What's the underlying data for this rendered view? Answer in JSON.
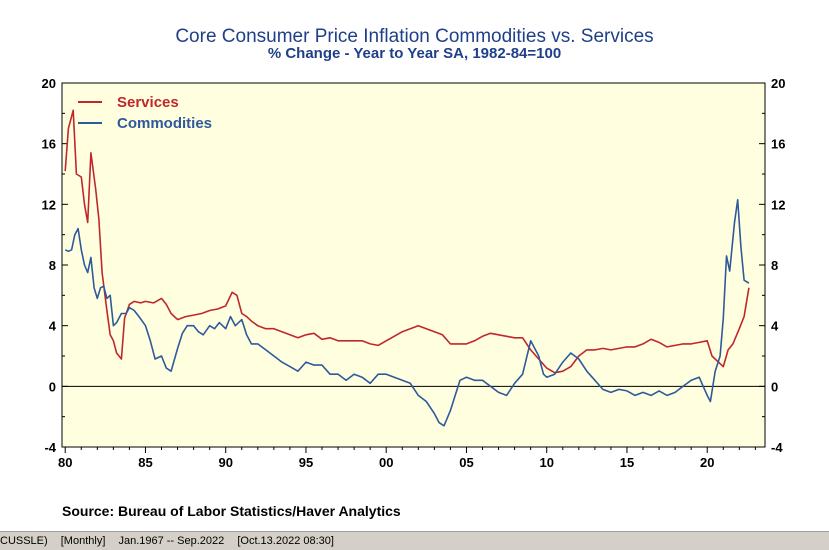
{
  "status_bar": {
    "series_code": "CUSSLE)",
    "frequency": "[Monthly]",
    "date_range": "Jan.1967 -- Sep.2022",
    "timestamp": "[Oct.13.2022 08:30]"
  },
  "chart_data": {
    "type": "line",
    "title": "Core Consumer Price Inflation Commodities vs. Services",
    "subtitle": "% Change - Year to Year    SA, 1982-84=100",
    "source": "Source:  Bureau of Labor Statistics/Haver Analytics",
    "xlim": [
      1979.8,
      2023.6
    ],
    "ylim": [
      -4,
      20
    ],
    "x_ticks": [
      1980,
      1985,
      1990,
      1995,
      2000,
      2005,
      2010,
      2015,
      2020
    ],
    "x_tick_labels": [
      "80",
      "85",
      "90",
      "95",
      "00",
      "05",
      "10",
      "15",
      "20"
    ],
    "y_ticks": [
      -4,
      0,
      4,
      8,
      12,
      16,
      20
    ],
    "y_tick_labels": [
      "-4",
      "0",
      "4",
      "8",
      "12",
      "16",
      "20"
    ],
    "legend_position": "top-left",
    "grid": false,
    "zero_line": true,
    "background_color": "#ffffe0",
    "series": [
      {
        "name": "Services",
        "color": "#c0272d",
        "x": [
          1980.0,
          1980.2,
          1980.5,
          1980.7,
          1981.0,
          1981.2,
          1981.4,
          1981.6,
          1981.9,
          1982.1,
          1982.3,
          1982.6,
          1982.8,
          1983.0,
          1983.2,
          1983.5,
          1983.7,
          1984.0,
          1984.3,
          1984.7,
          1985.0,
          1985.5,
          1986.0,
          1986.3,
          1986.6,
          1987.0,
          1987.5,
          1988.0,
          1988.5,
          1989.0,
          1989.5,
          1990.0,
          1990.4,
          1990.7,
          1991.0,
          1991.3,
          1991.6,
          1992.0,
          1992.5,
          1993.0,
          1993.5,
          1994.0,
          1994.5,
          1995.0,
          1995.5,
          1996.0,
          1996.5,
          1997.0,
          1997.5,
          1998.0,
          1998.5,
          1999.0,
          1999.5,
          2000.0,
          2000.5,
          2001.0,
          2001.5,
          2002.0,
          2002.5,
          2003.0,
          2003.5,
          2004.0,
          2004.5,
          2005.0,
          2005.5,
          2006.0,
          2006.5,
          2007.0,
          2007.5,
          2008.0,
          2008.5,
          2009.0,
          2009.5,
          2010.0,
          2010.5,
          2011.0,
          2011.5,
          2012.0,
          2012.5,
          2013.0,
          2013.5,
          2014.0,
          2014.5,
          2015.0,
          2015.5,
          2016.0,
          2016.5,
          2017.0,
          2017.5,
          2018.0,
          2018.5,
          2019.0,
          2019.5,
          2020.0,
          2020.3,
          2020.6,
          2021.0,
          2021.3,
          2021.6,
          2022.0,
          2022.3,
          2022.6
        ],
        "values": [
          14.2,
          17.0,
          18.2,
          14.0,
          13.8,
          12.0,
          10.8,
          15.4,
          13.0,
          11.0,
          7.5,
          5.0,
          3.4,
          3.0,
          2.2,
          1.8,
          4.5,
          5.4,
          5.6,
          5.5,
          5.6,
          5.5,
          5.8,
          5.4,
          4.8,
          4.4,
          4.6,
          4.7,
          4.8,
          5.0,
          5.1,
          5.3,
          6.2,
          6.0,
          4.8,
          4.6,
          4.3,
          4.0,
          3.8,
          3.8,
          3.6,
          3.4,
          3.2,
          3.4,
          3.5,
          3.1,
          3.2,
          3.0,
          3.0,
          3.0,
          3.0,
          2.8,
          2.7,
          3.0,
          3.3,
          3.6,
          3.8,
          4.0,
          3.8,
          3.6,
          3.4,
          2.8,
          2.8,
          2.8,
          3.0,
          3.3,
          3.5,
          3.4,
          3.3,
          3.2,
          3.2,
          2.4,
          1.8,
          1.2,
          0.9,
          1.0,
          1.3,
          2.0,
          2.4,
          2.4,
          2.5,
          2.4,
          2.5,
          2.6,
          2.6,
          2.8,
          3.1,
          2.9,
          2.6,
          2.7,
          2.8,
          2.8,
          2.9,
          3.0,
          2.0,
          1.7,
          1.3,
          2.4,
          2.8,
          3.8,
          4.6,
          6.5
        ]
      },
      {
        "name": "Commodities",
        "color": "#2e5a9c",
        "x": [
          1980.0,
          1980.2,
          1980.4,
          1980.6,
          1980.8,
          1981.0,
          1981.2,
          1981.4,
          1981.6,
          1981.8,
          1982.0,
          1982.2,
          1982.4,
          1982.6,
          1982.8,
          1983.0,
          1983.2,
          1983.5,
          1983.8,
          1984.0,
          1984.3,
          1984.6,
          1985.0,
          1985.3,
          1985.6,
          1986.0,
          1986.3,
          1986.6,
          1987.0,
          1987.3,
          1987.6,
          1988.0,
          1988.3,
          1988.6,
          1989.0,
          1989.3,
          1989.6,
          1990.0,
          1990.3,
          1990.6,
          1991.0,
          1991.3,
          1991.6,
          1992.0,
          1992.5,
          1993.0,
          1993.5,
          1994.0,
          1994.5,
          1995.0,
          1995.5,
          1996.0,
          1996.5,
          1997.0,
          1997.5,
          1998.0,
          1998.5,
          1999.0,
          1999.5,
          2000.0,
          2000.5,
          2001.0,
          2001.5,
          2002.0,
          2002.5,
          2003.0,
          2003.3,
          2003.6,
          2004.0,
          2004.3,
          2004.6,
          2005.0,
          2005.5,
          2006.0,
          2006.5,
          2007.0,
          2007.5,
          2008.0,
          2008.5,
          2009.0,
          2009.5,
          2009.8,
          2010.0,
          2010.5,
          2011.0,
          2011.5,
          2012.0,
          2012.5,
          2013.0,
          2013.5,
          2014.0,
          2014.5,
          2015.0,
          2015.5,
          2016.0,
          2016.5,
          2017.0,
          2017.5,
          2018.0,
          2018.5,
          2019.0,
          2019.5,
          2020.0,
          2020.2,
          2020.5,
          2020.8,
          2021.0,
          2021.2,
          2021.4,
          2021.7,
          2021.9,
          2022.1,
          2022.3,
          2022.6
        ],
        "values": [
          9.0,
          8.9,
          9.0,
          10.0,
          10.4,
          9.0,
          8.0,
          7.5,
          8.5,
          6.5,
          5.8,
          6.5,
          6.6,
          5.8,
          6.0,
          4.0,
          4.2,
          4.8,
          4.8,
          5.2,
          5.0,
          4.6,
          4.0,
          3.0,
          1.8,
          2.0,
          1.2,
          1.0,
          2.5,
          3.5,
          4.0,
          4.0,
          3.6,
          3.4,
          4.0,
          3.8,
          4.2,
          3.8,
          4.6,
          4.0,
          4.4,
          3.4,
          2.8,
          2.8,
          2.4,
          2.0,
          1.6,
          1.3,
          1.0,
          1.6,
          1.4,
          1.4,
          0.8,
          0.8,
          0.4,
          0.8,
          0.6,
          0.2,
          0.8,
          0.8,
          0.6,
          0.4,
          0.2,
          -0.6,
          -1.0,
          -1.8,
          -2.4,
          -2.6,
          -1.6,
          -0.6,
          0.4,
          0.6,
          0.4,
          0.4,
          0.0,
          -0.4,
          -0.6,
          0.2,
          0.8,
          3.0,
          2.0,
          0.8,
          0.6,
          0.8,
          1.6,
          2.2,
          1.8,
          1.0,
          0.4,
          -0.2,
          -0.4,
          -0.2,
          -0.3,
          -0.6,
          -0.4,
          -0.6,
          -0.3,
          -0.6,
          -0.4,
          0.0,
          0.4,
          0.6,
          -0.6,
          -1.0,
          1.0,
          2.0,
          4.5,
          8.6,
          7.6,
          10.8,
          12.3,
          9.2,
          7.0,
          6.8
        ]
      }
    ]
  }
}
